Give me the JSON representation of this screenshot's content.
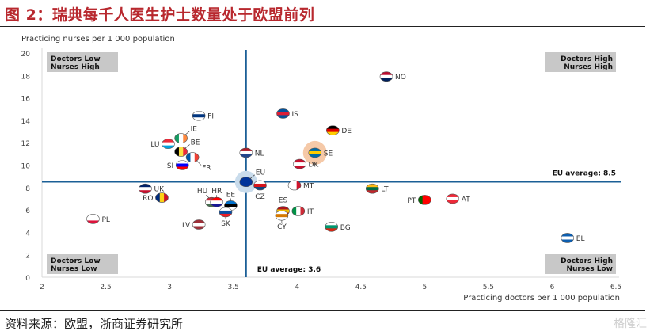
{
  "title": "图 2：瑞典每千人医生护士数量处于欧盟前列",
  "source": "资料来源：欧盟，浙商证券研究所",
  "watermark": "格隆汇",
  "chart_data": {
    "type": "scatter",
    "ylabel": "Practicing nurses per 1 000 population",
    "xlabel": "Practicing doctors per 1 000 population",
    "xlim": [
      2,
      6.5
    ],
    "ylim": [
      0,
      20
    ],
    "xticks": [
      "2",
      "2.5",
      "3",
      "3.5",
      "4",
      "4.5",
      "5",
      "5.5",
      "6",
      "6.5"
    ],
    "xtick_values": [
      2,
      2.5,
      3,
      3.5,
      4,
      4.5,
      5,
      5.5,
      6,
      6.5
    ],
    "yticks": [
      "0",
      "2",
      "4",
      "6",
      "8",
      "10",
      "12",
      "14",
      "16",
      "18",
      "20"
    ],
    "ytick_values": [
      0,
      2,
      4,
      6,
      8,
      10,
      12,
      14,
      16,
      18,
      20
    ],
    "eu_avg_x": 3.6,
    "eu_avg_y": 8.5,
    "eu_avg_x_label": "EU average: 3.6",
    "eu_avg_y_label": "EU average: 8.5",
    "quadrants": {
      "top_left": [
        "Doctors Low",
        "Nurses High"
      ],
      "top_right": [
        "Doctors High",
        "Nurses High"
      ],
      "bottom_left": [
        "Doctors Low",
        "Nurses Low"
      ],
      "bottom_right": [
        "Doctors High",
        "Nurses Low"
      ]
    },
    "colors": {
      "avg_line": "#1b5f96",
      "quadrant_box": "#c8c8c8",
      "highlight_se": "#f5c9a8",
      "highlight_eu": "#c9dcec"
    },
    "points": [
      {
        "label": "NO",
        "x": 4.7,
        "y": 17.9,
        "flag": [
          "#ba0c2f",
          "#ffffff",
          "#00205b"
        ],
        "label_side": "right"
      },
      {
        "label": "FI",
        "x": 3.23,
        "y": 14.4,
        "flag": [
          "#ffffff",
          "#003580",
          "#ffffff"
        ],
        "label_side": "right"
      },
      {
        "label": "IS",
        "x": 3.89,
        "y": 14.6,
        "flag": [
          "#02529c",
          "#dc1e35",
          "#02529c"
        ],
        "label_side": "right"
      },
      {
        "label": "DE",
        "x": 4.28,
        "y": 13.1,
        "flag": [
          "#000000",
          "#dd0000",
          "#ffce00"
        ],
        "label_side": "right"
      },
      {
        "label": "IE",
        "x": 3.09,
        "y": 12.4,
        "flag": [
          "#169b62",
          "#ffffff",
          "#ff883e"
        ],
        "label_side": "upright",
        "vertical": true
      },
      {
        "label": "LU",
        "x": 2.99,
        "y": 11.9,
        "flag": [
          "#ed2939",
          "#ffffff",
          "#00a1de"
        ],
        "label_side": "left"
      },
      {
        "label": "BE",
        "x": 3.09,
        "y": 11.2,
        "flag": [
          "#000000",
          "#fae042",
          "#ed2939"
        ],
        "label_side": "upright",
        "vertical": true
      },
      {
        "label": "NL",
        "x": 3.6,
        "y": 11.1,
        "flag": [
          "#ae1c28",
          "#ffffff",
          "#21468b"
        ],
        "label_side": "right"
      },
      {
        "label": "SE",
        "x": 4.14,
        "y": 11.1,
        "flag": [
          "#006aa7",
          "#fecc00",
          "#006aa7"
        ],
        "label_side": "right",
        "highlight": true
      },
      {
        "label": "FR",
        "x": 3.18,
        "y": 10.7,
        "flag": [
          "#0055a4",
          "#ffffff",
          "#ef4135"
        ],
        "label_side": "downright",
        "vertical": true
      },
      {
        "label": "SI",
        "x": 3.1,
        "y": 10.0,
        "flag": [
          "#ffffff",
          "#0000ff",
          "#ff0000"
        ],
        "label_side": "left"
      },
      {
        "label": "DK",
        "x": 4.02,
        "y": 10.1,
        "flag": [
          "#c8102e",
          "#ffffff",
          "#c8102e"
        ],
        "label_side": "right"
      },
      {
        "label": "EU",
        "x": 3.6,
        "y": 8.5,
        "flag": [
          "#003399",
          "#003399",
          "#003399"
        ],
        "label_side": "upright",
        "eu": true
      },
      {
        "label": "CZ",
        "x": 3.71,
        "y": 8.2,
        "flag": [
          "#ffffff",
          "#d7141a",
          "#11457e"
        ],
        "label_side": "down"
      },
      {
        "label": "MT",
        "x": 3.98,
        "y": 8.2,
        "flag": [
          "#ffffff",
          "#ffffff",
          "#cf142b"
        ],
        "label_side": "right",
        "vertical": true
      },
      {
        "label": "LT",
        "x": 4.59,
        "y": 7.9,
        "flag": [
          "#fdb913",
          "#006a44",
          "#c1272d"
        ],
        "label_side": "right"
      },
      {
        "label": "UK",
        "x": 2.81,
        "y": 7.9,
        "flag": [
          "#012169",
          "#ffffff",
          "#c8102e"
        ],
        "label_side": "right"
      },
      {
        "label": "RO",
        "x": 2.94,
        "y": 7.1,
        "flag": [
          "#002b7f",
          "#fcd116",
          "#ce1126"
        ],
        "label_side": "left",
        "vertical": true
      },
      {
        "label": "AT",
        "x": 5.22,
        "y": 7.0,
        "flag": [
          "#ed2939",
          "#ffffff",
          "#ed2939"
        ],
        "label_side": "right"
      },
      {
        "label": "PT",
        "x": 5.0,
        "y": 6.9,
        "flag": [
          "#006600",
          "#ff0000",
          "#ff0000"
        ],
        "label_side": "left",
        "vertical": true
      },
      {
        "label": "HU",
        "x": 3.33,
        "y": 6.7,
        "flag": [
          "#ce2939",
          "#ffffff",
          "#477050"
        ],
        "label_side": "upleft"
      },
      {
        "label": "HR",
        "x": 3.37,
        "y": 6.7,
        "flag": [
          "#ff0000",
          "#ffffff",
          "#171796"
        ],
        "label_side": "up"
      },
      {
        "label": "EE",
        "x": 3.48,
        "y": 6.4,
        "flag": [
          "#0072ce",
          "#000000",
          "#ffffff"
        ],
        "label_side": "up"
      },
      {
        "label": "ES",
        "x": 3.89,
        "y": 5.9,
        "flag": [
          "#aa151b",
          "#f1bf00",
          "#aa151b"
        ],
        "label_side": "up"
      },
      {
        "label": "IT",
        "x": 4.01,
        "y": 5.9,
        "flag": [
          "#009246",
          "#ffffff",
          "#ce2b37"
        ],
        "label_side": "right",
        "vertical": true
      },
      {
        "label": "SK",
        "x": 3.44,
        "y": 5.8,
        "flag": [
          "#ffffff",
          "#0b4ea2",
          "#ee1c25"
        ],
        "label_side": "down"
      },
      {
        "label": "CY",
        "x": 3.88,
        "y": 5.5,
        "flag": [
          "#ffffff",
          "#d57800",
          "#ffffff"
        ],
        "label_side": "down"
      },
      {
        "label": "PL",
        "x": 2.4,
        "y": 5.2,
        "flag": [
          "#ffffff",
          "#ffffff",
          "#dc143c"
        ],
        "label_side": "right"
      },
      {
        "label": "LV",
        "x": 3.23,
        "y": 4.7,
        "flag": [
          "#9e3039",
          "#ffffff",
          "#9e3039"
        ],
        "label_side": "left"
      },
      {
        "label": "BG",
        "x": 4.27,
        "y": 4.5,
        "flag": [
          "#ffffff",
          "#00966e",
          "#d62612"
        ],
        "label_side": "right"
      },
      {
        "label": "EL",
        "x": 6.12,
        "y": 3.5,
        "flag": [
          "#0d5eaf",
          "#ffffff",
          "#0d5eaf"
        ],
        "label_side": "right"
      }
    ]
  }
}
